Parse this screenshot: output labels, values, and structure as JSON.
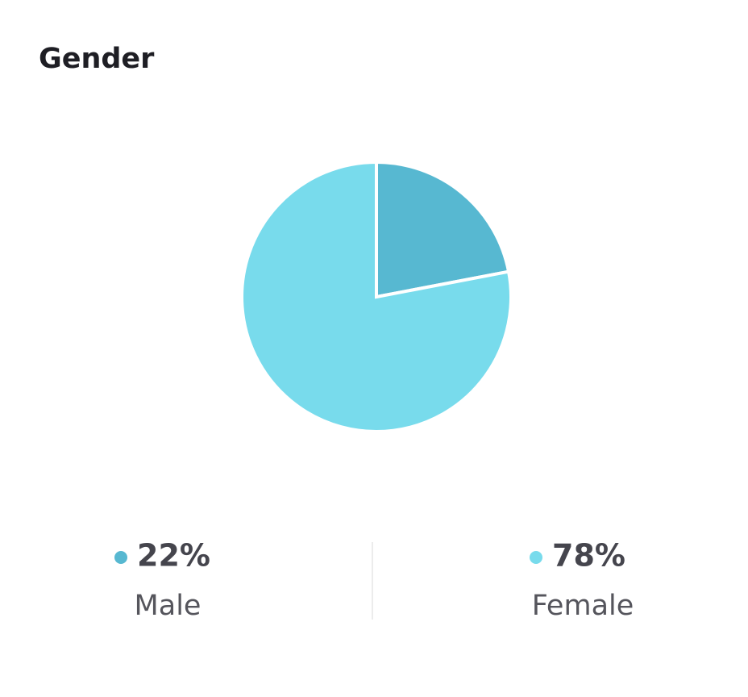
{
  "chart_data": {
    "type": "pie",
    "title": "Gender",
    "categories": [
      "Male",
      "Female"
    ],
    "values": [
      22,
      78
    ],
    "value_labels": [
      "22%",
      "78%"
    ],
    "colors": [
      "#57b8d1",
      "#78dbec"
    ]
  }
}
